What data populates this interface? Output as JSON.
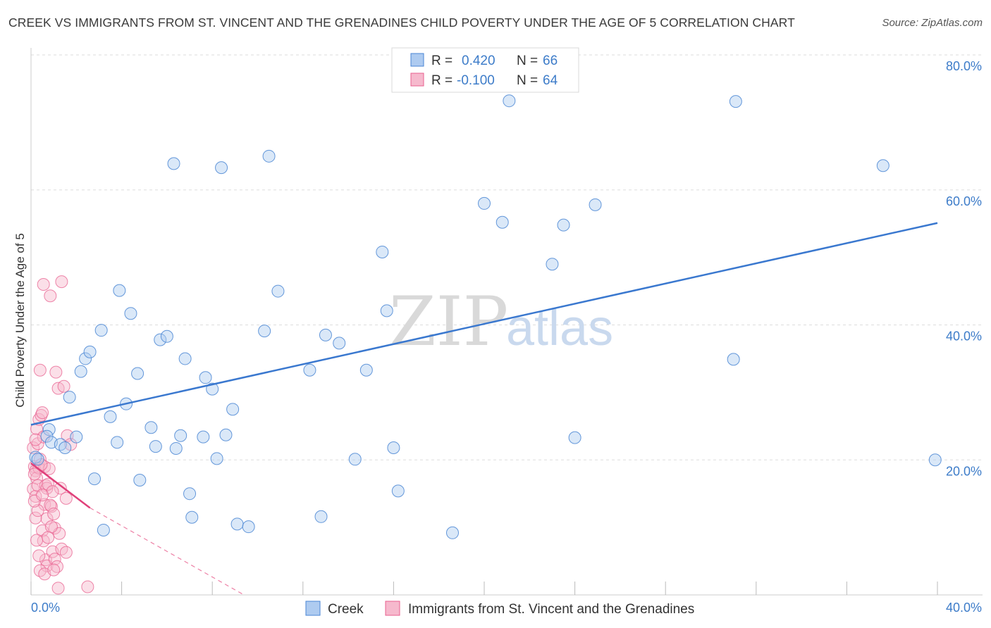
{
  "title": "CREEK VS IMMIGRANTS FROM ST. VINCENT AND THE GRENADINES CHILD POVERTY UNDER THE AGE OF 5 CORRELATION CHART",
  "source": "Source: ZipAtlas.com",
  "watermark": {
    "zip": "ZIP",
    "atlas": "atlas"
  },
  "colors": {
    "creek": "#4a86d4",
    "creek_fill": "#aecbf0",
    "immigrants": "#e8608f",
    "immigrants_fill": "#f6b9cd",
    "grid": "#dddddd",
    "tick_label": "#3d7cc9"
  },
  "legend_top": {
    "rows": [
      {
        "r_label": "R =",
        "r_value": "0.420",
        "n_label": "N =",
        "n_value": "66"
      },
      {
        "r_label": "R =",
        "r_value": "-0.100",
        "n_label": "N =",
        "n_value": "64"
      }
    ]
  },
  "legend_bottom": [
    "Creek",
    "Immigrants from St. Vincent and the Grenadines"
  ],
  "chart_data": {
    "type": "scatter",
    "title": "CREEK VS IMMIGRANTS FROM ST. VINCENT AND THE GRENADINES CHILD POVERTY UNDER THE AGE OF 5 CORRELATION CHART",
    "xlabel": "",
    "ylabel": "Child Poverty Under the Age of 5",
    "xlim": [
      0,
      42
    ],
    "ylim": [
      0,
      82
    ],
    "x_tick_labels": [
      "0.0%",
      "40.0%"
    ],
    "y_ticks": [
      20,
      40,
      60,
      80
    ],
    "y_tick_labels": [
      "20.0%",
      "40.0%",
      "60.0%",
      "80.0%"
    ],
    "grid": true,
    "legend_position": "top-center",
    "series": [
      {
        "name": "Creek",
        "r": 0.42,
        "n": 66,
        "trend": {
          "x": [
            0,
            40
          ],
          "y": [
            25.2,
            55.1
          ]
        },
        "points": [
          [
            0.2,
            20.4
          ],
          [
            0.3,
            20.1
          ],
          [
            0.8,
            24.5
          ],
          [
            0.7,
            23.5
          ],
          [
            0.9,
            22.6
          ],
          [
            1.3,
            22.3
          ],
          [
            1.5,
            21.8
          ],
          [
            2.0,
            23.4
          ],
          [
            1.7,
            29.3
          ],
          [
            2.2,
            33.1
          ],
          [
            2.4,
            35.0
          ],
          [
            2.6,
            36.0
          ],
          [
            3.1,
            39.2
          ],
          [
            2.8,
            17.2
          ],
          [
            3.2,
            9.6
          ],
          [
            3.5,
            26.4
          ],
          [
            3.8,
            22.6
          ],
          [
            3.9,
            45.1
          ],
          [
            4.2,
            28.3
          ],
          [
            4.4,
            41.7
          ],
          [
            4.7,
            32.8
          ],
          [
            4.8,
            17.0
          ],
          [
            5.3,
            24.8
          ],
          [
            5.5,
            22.0
          ],
          [
            5.7,
            37.8
          ],
          [
            6.0,
            38.3
          ],
          [
            6.3,
            63.9
          ],
          [
            6.4,
            21.7
          ],
          [
            6.6,
            23.6
          ],
          [
            6.8,
            35.0
          ],
          [
            7.0,
            15.0
          ],
          [
            7.1,
            11.5
          ],
          [
            7.6,
            23.4
          ],
          [
            7.7,
            32.2
          ],
          [
            8.0,
            30.5
          ],
          [
            8.2,
            20.2
          ],
          [
            8.4,
            63.3
          ],
          [
            8.6,
            23.7
          ],
          [
            8.9,
            27.5
          ],
          [
            9.1,
            10.5
          ],
          [
            9.6,
            10.1
          ],
          [
            10.3,
            39.1
          ],
          [
            10.5,
            65.0
          ],
          [
            10.9,
            45.0
          ],
          [
            12.3,
            33.3
          ],
          [
            12.8,
            11.6
          ],
          [
            13.0,
            38.5
          ],
          [
            13.6,
            37.3
          ],
          [
            14.3,
            20.1
          ],
          [
            14.8,
            33.3
          ],
          [
            15.5,
            50.8
          ],
          [
            15.7,
            42.1
          ],
          [
            16.0,
            21.8
          ],
          [
            16.2,
            15.4
          ],
          [
            18.6,
            9.2
          ],
          [
            20.0,
            58.0
          ],
          [
            20.8,
            55.2
          ],
          [
            21.1,
            73.2
          ],
          [
            23.0,
            49.0
          ],
          [
            23.5,
            54.8
          ],
          [
            24.0,
            23.3
          ],
          [
            24.9,
            57.8
          ],
          [
            31.1,
            73.1
          ],
          [
            31.0,
            34.9
          ],
          [
            37.6,
            63.6
          ],
          [
            39.9,
            20.0
          ]
        ]
      },
      {
        "name": "Immigrants from St. Vincent and the Grenadines",
        "r": -0.1,
        "n": 64,
        "trend": {
          "x": [
            0,
            2.6
          ],
          "y": [
            19.5,
            12.9
          ]
        },
        "trend_extended": {
          "x": [
            2.6,
            9.4
          ],
          "y": [
            12.9,
            0
          ]
        },
        "points": [
          [
            0.1,
            21.8
          ],
          [
            0.15,
            19.0
          ],
          [
            0.2,
            18.4
          ],
          [
            0.25,
            17.3
          ],
          [
            0.1,
            15.7
          ],
          [
            0.2,
            14.6
          ],
          [
            0.3,
            16.2
          ],
          [
            0.35,
            18.8
          ],
          [
            0.4,
            20.1
          ],
          [
            0.3,
            22.4
          ],
          [
            0.25,
            24.6
          ],
          [
            0.35,
            26.0
          ],
          [
            0.45,
            26.6
          ],
          [
            0.5,
            27.0
          ],
          [
            0.4,
            33.3
          ],
          [
            0.55,
            23.4
          ],
          [
            0.6,
            19.0
          ],
          [
            0.65,
            16.2
          ],
          [
            0.7,
            15.8
          ],
          [
            0.75,
            16.4
          ],
          [
            0.6,
            13.4
          ],
          [
            0.7,
            11.3
          ],
          [
            0.5,
            9.5
          ],
          [
            0.55,
            8.0
          ],
          [
            0.65,
            5.2
          ],
          [
            0.7,
            4.3
          ],
          [
            0.4,
            3.6
          ],
          [
            0.6,
            3.1
          ],
          [
            0.8,
            18.7
          ],
          [
            0.9,
            13.1
          ],
          [
            0.95,
            6.4
          ],
          [
            1.05,
            5.3
          ],
          [
            1.15,
            4.2
          ],
          [
            1.0,
            3.7
          ],
          [
            1.05,
            9.9
          ],
          [
            1.25,
            9.1
          ],
          [
            1.3,
            15.8
          ],
          [
            1.35,
            6.8
          ],
          [
            1.55,
            6.3
          ],
          [
            1.55,
            14.3
          ],
          [
            1.6,
            23.6
          ],
          [
            1.75,
            22.3
          ],
          [
            1.1,
            33.0
          ],
          [
            1.2,
            30.6
          ],
          [
            1.45,
            30.9
          ],
          [
            0.55,
            46.0
          ],
          [
            0.85,
            44.3
          ],
          [
            1.35,
            46.4
          ],
          [
            0.2,
            11.4
          ],
          [
            0.3,
            12.5
          ],
          [
            0.85,
            13.3
          ],
          [
            0.9,
            10.1
          ],
          [
            0.15,
            13.9
          ],
          [
            1.2,
            1.0
          ],
          [
            2.5,
            1.2
          ],
          [
            0.75,
            8.5
          ],
          [
            0.45,
            19.3
          ],
          [
            0.15,
            17.9
          ],
          [
            0.95,
            15.3
          ],
          [
            0.35,
            5.8
          ],
          [
            0.25,
            8.1
          ],
          [
            1.0,
            12.0
          ],
          [
            0.5,
            14.8
          ],
          [
            0.2,
            23.0
          ]
        ]
      }
    ]
  }
}
